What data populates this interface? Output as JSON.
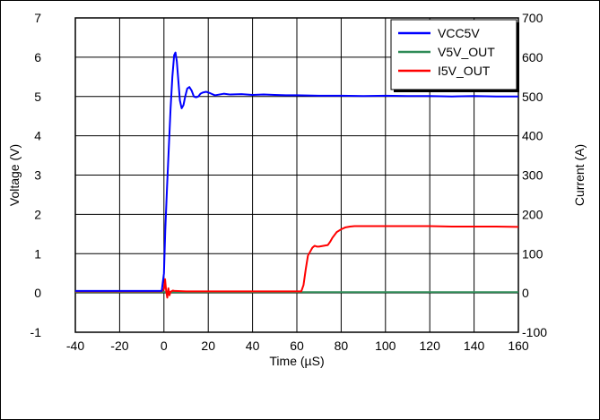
{
  "chart_data": {
    "type": "line",
    "title": "",
    "xlabel": "Time (µS)",
    "ylabel_left": "Voltage (V)",
    "ylabel_right": "Current (A)",
    "xlim": [
      -40,
      160
    ],
    "ylim_left": [
      -1,
      7
    ],
    "ylim_right": [
      -100,
      700
    ],
    "x_ticks": [
      -40,
      -20,
      0,
      20,
      40,
      60,
      80,
      100,
      120,
      140,
      160
    ],
    "y_left_ticks": [
      -1,
      0,
      1,
      2,
      3,
      4,
      5,
      6,
      7
    ],
    "y_right_ticks": [
      -100,
      0,
      100,
      200,
      300,
      400,
      500,
      600,
      700
    ],
    "grid": true,
    "legend_position": "top-right",
    "series": [
      {
        "name": "VCC5V",
        "color": "#0000ff",
        "axis": "left",
        "x": [
          -40,
          -1,
          0,
          0.6,
          1.4,
          2.2,
          3,
          3.8,
          4.6,
          5.2,
          5.8,
          6.5,
          7.2,
          8,
          8.8,
          9.6,
          10.5,
          11.5,
          12.5,
          13.5,
          14.5,
          15.5,
          16.5,
          17.5,
          19,
          21,
          23,
          25,
          27,
          30,
          35,
          40,
          45,
          50,
          55,
          60,
          70,
          80,
          90,
          100,
          110,
          120,
          130,
          140,
          150,
          160
        ],
        "y": [
          0.05,
          0.05,
          0.5,
          1.6,
          2.7,
          3.7,
          4.7,
          5.5,
          6.05,
          6.12,
          5.9,
          5.4,
          4.9,
          4.7,
          4.78,
          5.0,
          5.2,
          5.24,
          5.15,
          5.0,
          4.98,
          5.0,
          5.07,
          5.1,
          5.12,
          5.08,
          5.03,
          5.05,
          5.07,
          5.05,
          5.06,
          5.04,
          5.05,
          5.04,
          5.03,
          5.03,
          5.02,
          5.02,
          5.01,
          5.02,
          5.01,
          5.01,
          5.0,
          5.01,
          5.0,
          5.0
        ]
      },
      {
        "name": "V5V_OUT",
        "color": "#2e8b57",
        "axis": "left",
        "x": [
          -40,
          160
        ],
        "y": [
          0.02,
          0.02
        ]
      },
      {
        "name": "I5V_OUT",
        "color": "#ff0000",
        "axis": "right",
        "x": [
          -40,
          -1,
          0,
          0.5,
          1,
          1.5,
          2,
          2.5,
          3,
          4,
          5,
          10,
          20,
          40,
          60,
          62,
          63,
          64,
          65,
          66,
          67,
          68,
          69,
          70,
          72,
          74,
          75,
          76,
          78,
          80,
          82,
          84,
          86,
          88,
          90,
          100,
          110,
          120,
          130,
          140,
          150,
          160
        ],
        "y": [
          4,
          4,
          10,
          35,
          5,
          -12,
          12,
          -6,
          3,
          6,
          5,
          4,
          4,
          4,
          4,
          4,
          20,
          60,
          95,
          105,
          115,
          120,
          118,
          118,
          120,
          122,
          130,
          140,
          155,
          162,
          167,
          169,
          170,
          170,
          170,
          170,
          170,
          170,
          169,
          169,
          169,
          168
        ]
      }
    ]
  }
}
